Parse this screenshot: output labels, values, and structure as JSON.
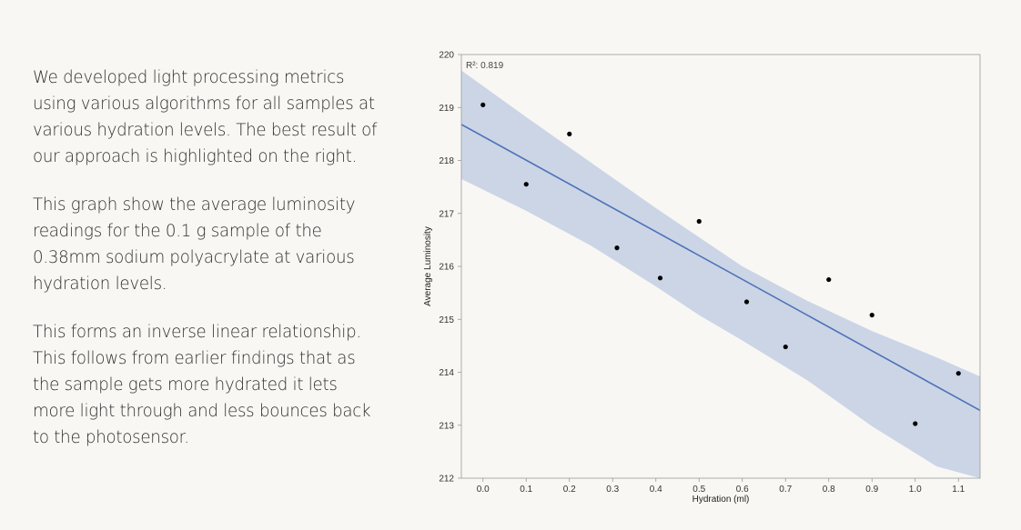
{
  "content": {
    "paragraphs": [
      "We developed light processing metrics using various algorithms for all samples at various hydration levels. The best result of our approach is highlighted on the right.",
      "This graph show the average luminosity readings for the 0.1 g sample of the 0.38mm sodium polyacrylate at various hydration levels.",
      "This forms an inverse linear relationship. This follows from earlier findings that as the sample gets more hydrated it lets more light through and less bounces back to the photosensor."
    ]
  },
  "chart_data": {
    "type": "scatter",
    "xlabel": "Hydration (ml)",
    "ylabel": "Average Luminosity",
    "annotation": "R²: 0.819",
    "xlim": [
      -0.05,
      1.15
    ],
    "ylim": [
      212,
      220
    ],
    "x_ticks": [
      "0.0",
      "0.1",
      "0.2",
      "0.3",
      "0.4",
      "0.5",
      "0.6",
      "0.7",
      "0.8",
      "0.9",
      "1.0",
      "1.1"
    ],
    "y_ticks": [
      "212",
      "213",
      "214",
      "215",
      "216",
      "217",
      "218",
      "219",
      "220"
    ],
    "points": [
      {
        "x": 0.0,
        "y": 219.05
      },
      {
        "x": 0.1,
        "y": 217.55
      },
      {
        "x": 0.2,
        "y": 218.5
      },
      {
        "x": 0.31,
        "y": 216.35
      },
      {
        "x": 0.41,
        "y": 215.78
      },
      {
        "x": 0.5,
        "y": 216.85
      },
      {
        "x": 0.61,
        "y": 215.33
      },
      {
        "x": 0.7,
        "y": 214.48
      },
      {
        "x": 0.8,
        "y": 215.75
      },
      {
        "x": 0.9,
        "y": 215.08
      },
      {
        "x": 1.0,
        "y": 213.03
      },
      {
        "x": 1.1,
        "y": 213.98
      }
    ],
    "regression_line": {
      "x": [
        -0.05,
        1.15
      ],
      "y": [
        218.68,
        213.28
      ]
    },
    "confidence_band": {
      "x": [
        -0.05,
        0.1,
        0.25,
        0.4,
        0.5,
        0.6,
        0.75,
        0.9,
        1.05,
        1.15
      ],
      "upper": [
        219.7,
        218.82,
        217.96,
        217.1,
        216.55,
        216.0,
        215.35,
        214.78,
        214.28,
        213.92
      ],
      "lower": [
        217.65,
        217.05,
        216.39,
        215.62,
        215.08,
        214.6,
        213.85,
        212.98,
        212.22,
        211.72
      ]
    },
    "grid": false,
    "legend": "none",
    "colors": {
      "line": "#4e72b8",
      "band": "#cbd5e6",
      "points": "#000000",
      "axes": "#9a9a9a"
    }
  }
}
